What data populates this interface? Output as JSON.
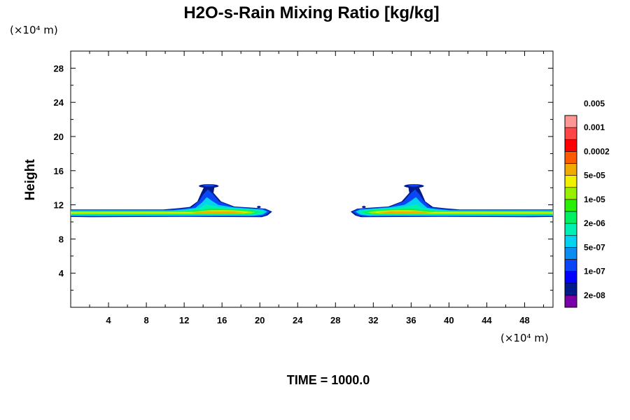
{
  "chart_data": {
    "type": "contour",
    "title": "H2O-s-Rain Mixing Ratio [kg/kg]",
    "xlabel": "",
    "ylabel": "Height",
    "x_unit_label": "(×10⁴ m)",
    "y_unit_label": "(×10⁴ m)",
    "xlim": [
      0,
      51
    ],
    "ylim": [
      0,
      30
    ],
    "xticks": [
      4,
      8,
      12,
      16,
      20,
      24,
      28,
      32,
      36,
      40,
      44,
      48
    ],
    "yticks": [
      4,
      8,
      12,
      16,
      20,
      24,
      28
    ],
    "grid": false,
    "colorbar": {
      "colors": [
        "#7a00a8",
        "#001c8c",
        "#0000ff",
        "#0a46f5",
        "#0a8cf0",
        "#00d2f0",
        "#00f0b4",
        "#00f064",
        "#28f000",
        "#96f000",
        "#f0f000",
        "#f0aa00",
        "#ff5a00",
        "#ff0000",
        "#ff4646",
        "#ff9696"
      ],
      "labels": [
        "2e-08",
        "1e-07",
        "5e-07",
        "2e-06",
        "1e-05",
        "5e-05",
        "0.0002",
        "0.001",
        "0.005"
      ]
    },
    "features": [
      {
        "name": "left cloud layer",
        "x_range": [
          0,
          21.3
        ],
        "height_range": [
          10.6,
          11.5
        ],
        "anvil_top_x": 14.4,
        "anvil_top_height": 14.3
      },
      {
        "name": "right cloud layer",
        "x_range": [
          29.6,
          51
        ],
        "height_range": [
          10.6,
          11.5
        ],
        "anvil_top_x": 36.2,
        "anvil_top_height": 14.3
      }
    ]
  },
  "footer": {
    "time_label": "TIME = 1000.0"
  }
}
